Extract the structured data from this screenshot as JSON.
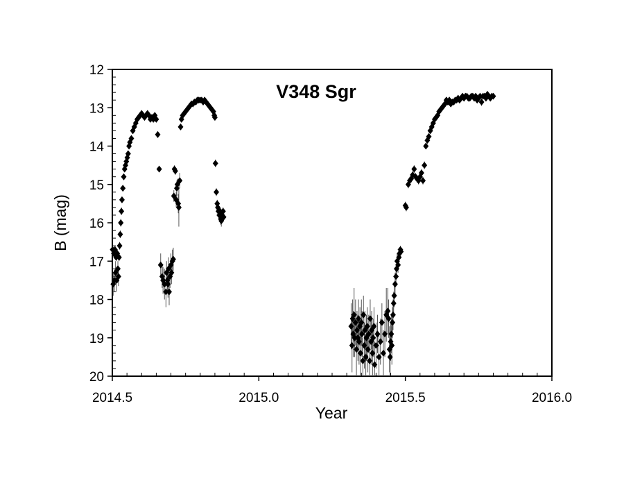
{
  "chart_data": {
    "type": "scatter",
    "title": "V348 Sgr",
    "xlabel": "Year",
    "ylabel": "B (mag)",
    "xlim": [
      2014.5,
      2016.0
    ],
    "ylim": [
      12,
      20
    ],
    "y_inverted": true,
    "x_ticks": [
      "2014.5",
      "2015.0",
      "2015.5",
      "2016.0"
    ],
    "x_tick_values": [
      2014.5,
      2015.0,
      2015.5,
      2016.0
    ],
    "y_ticks": [
      "12",
      "13",
      "14",
      "15",
      "16",
      "17",
      "18",
      "19",
      "20"
    ],
    "y_tick_values": [
      12,
      13,
      14,
      15,
      16,
      17,
      18,
      19,
      20
    ],
    "grid": false,
    "legend": "none",
    "marker": "diamond",
    "marker_color": "#000000",
    "series": [
      {
        "x": [
          2014.501,
          2014.503,
          2014.505,
          2014.507,
          2014.509,
          2014.511,
          2014.513,
          2014.515,
          2014.517,
          2014.519,
          2014.521,
          2014.523,
          2014.525,
          2014.527,
          2014.529,
          2014.531,
          2014.533,
          2014.536,
          2014.539,
          2014.542,
          2014.545,
          2014.548,
          2014.551,
          2014.554,
          2014.557,
          2014.56,
          2014.565,
          2014.57,
          2014.575,
          2014.58,
          2014.585,
          2014.59,
          2014.595,
          2014.6,
          2014.605,
          2014.61,
          2014.615,
          2014.62,
          2014.625,
          2014.63,
          2014.635,
          2014.64,
          2014.645,
          2014.65,
          2014.655,
          2014.66,
          2014.665,
          2014.67,
          2014.673,
          2014.678,
          2014.683,
          2014.685,
          2014.688,
          2014.69,
          2014.692,
          2014.694,
          2014.697,
          2014.7,
          2014.702,
          2014.705,
          2014.708,
          2014.71,
          2014.712,
          2014.715,
          2014.718,
          2014.72,
          2014.722,
          2014.725,
          2014.727,
          2014.73,
          2014.733,
          2014.736,
          2014.74,
          2014.745,
          2014.75,
          2014.755,
          2014.76,
          2014.765,
          2014.77,
          2014.775,
          2014.78,
          2014.785,
          2014.79,
          2014.795,
          2014.8,
          2014.805,
          2014.81,
          2014.815,
          2014.82,
          2014.825,
          2014.83,
          2014.835,
          2014.84,
          2014.845,
          2014.848,
          2014.85,
          2014.852,
          2014.855,
          2014.858,
          2014.86,
          2014.862,
          2014.865,
          2014.868,
          2014.87,
          2014.872,
          2014.875,
          2014.878,
          2014.88
        ],
        "y": [
          16.7,
          17.6,
          16.8,
          17.5,
          16.7,
          17.3,
          16.9,
          17.5,
          16.8,
          17.2,
          17.4,
          16.9,
          16.6,
          16.3,
          16.0,
          15.7,
          15.4,
          15.1,
          14.8,
          14.6,
          14.5,
          14.4,
          14.3,
          14.2,
          14.0,
          13.9,
          13.8,
          13.6,
          13.5,
          13.4,
          13.3,
          13.25,
          13.2,
          13.15,
          13.2,
          13.25,
          13.2,
          13.15,
          13.2,
          13.3,
          13.25,
          13.3,
          13.2,
          13.3,
          13.7,
          14.6,
          17.1,
          17.4,
          17.5,
          17.6,
          17.8,
          17.3,
          17.5,
          17.6,
          17.2,
          17.8,
          17.4,
          17.1,
          17.3,
          17.0,
          16.95,
          15.3,
          14.6,
          14.65,
          15.4,
          15.1,
          15.0,
          15.5,
          15.6,
          14.9,
          13.5,
          13.3,
          13.2,
          13.15,
          13.1,
          13.05,
          13.0,
          12.95,
          12.9,
          12.9,
          12.85,
          12.85,
          12.8,
          12.8,
          12.8,
          12.8,
          12.85,
          12.8,
          12.85,
          12.9,
          12.95,
          13.0,
          13.05,
          13.1,
          13.2,
          13.25,
          14.45,
          15.2,
          15.5,
          15.6,
          15.7,
          15.8,
          15.7,
          15.9,
          15.95,
          15.8,
          15.7,
          15.85
        ],
        "errors": [
          0.1,
          0.3,
          0.1,
          0.3,
          0.1,
          0.3,
          0.1,
          0.3,
          0.1,
          0.2,
          0.25,
          0.1,
          0.1,
          0.1,
          0.1,
          0.1,
          0.05,
          0.05,
          0.05,
          0.05,
          0.05,
          0.05,
          0.05,
          0.05,
          0.05,
          0.05,
          0.05,
          0.05,
          0.05,
          0.05,
          0.05,
          0.05,
          0.05,
          0.05,
          0.05,
          0.05,
          0.05,
          0.05,
          0.05,
          0.05,
          0.05,
          0.05,
          0.05,
          0.05,
          0.05,
          0.05,
          0.3,
          0.3,
          0.35,
          0.4,
          0.4,
          0.3,
          0.3,
          0.35,
          0.3,
          0.35,
          0.3,
          0.3,
          0.3,
          0.3,
          0.3,
          0.15,
          0.1,
          0.1,
          0.2,
          0.2,
          0.15,
          0.25,
          0.5,
          0.2,
          0.05,
          0.05,
          0.05,
          0.05,
          0.05,
          0.05,
          0.05,
          0.05,
          0.05,
          0.05,
          0.05,
          0.05,
          0.05,
          0.05,
          0.05,
          0.05,
          0.05,
          0.05,
          0.05,
          0.05,
          0.05,
          0.05,
          0.05,
          0.05,
          0.05,
          0.05,
          0.1,
          0.1,
          0.1,
          0.1,
          0.1,
          0.15,
          0.1,
          0.15,
          0.15,
          0.1,
          0.1,
          0.1
        ]
      },
      {
        "x": [
          2015.315,
          2015.318,
          2015.32,
          2015.322,
          2015.325,
          2015.327,
          2015.33,
          2015.333,
          2015.335,
          2015.338,
          2015.34,
          2015.342,
          2015.345,
          2015.347,
          2015.35,
          2015.352,
          2015.355,
          2015.357,
          2015.36,
          2015.362,
          2015.365,
          2015.367,
          2015.37,
          2015.372,
          2015.375,
          2015.378,
          2015.38,
          2015.383,
          2015.385,
          2015.388,
          2015.39,
          2015.393,
          2015.395,
          2015.4,
          2015.405,
          2015.41,
          2015.415,
          2015.42,
          2015.425,
          2015.43,
          2015.435,
          2015.44,
          2015.443,
          2015.446,
          2015.448,
          2015.45,
          2015.452,
          2015.454,
          2015.456,
          2015.458,
          2015.46,
          2015.462,
          2015.465,
          2015.468,
          2015.47,
          2015.472,
          2015.475,
          2015.478,
          2015.48,
          2015.483,
          2015.485
        ],
        "y": [
          18.7,
          19.2,
          18.5,
          18.9,
          18.4,
          19.0,
          18.6,
          19.3,
          18.8,
          19.0,
          18.5,
          19.1,
          18.7,
          19.4,
          18.6,
          18.9,
          19.6,
          18.4,
          19.2,
          18.8,
          19.5,
          19.0,
          18.7,
          19.3,
          18.9,
          19.6,
          18.5,
          19.1,
          18.8,
          19.4,
          19.0,
          18.7,
          19.7,
          19.2,
          18.9,
          19.5,
          19.1,
          18.6,
          19.4,
          18.9,
          18.4,
          18.3,
          18.5,
          19.3,
          19.5,
          19.1,
          18.9,
          19.2,
          18.6,
          18.4,
          18.1,
          17.9,
          17.6,
          17.4,
          17.2,
          17.0,
          17.1,
          16.9,
          16.8,
          16.7,
          16.75
        ],
        "errors": [
          0.6,
          0.7,
          0.5,
          0.6,
          0.7,
          0.5,
          0.6,
          0.7,
          0.5,
          0.6,
          0.5,
          0.6,
          0.5,
          0.7,
          0.6,
          0.6,
          0.6,
          0.5,
          0.6,
          0.5,
          0.6,
          0.6,
          0.5,
          0.6,
          0.5,
          0.6,
          0.5,
          0.6,
          0.5,
          0.6,
          0.5,
          0.5,
          0.6,
          0.6,
          0.5,
          0.6,
          0.6,
          0.5,
          0.6,
          0.6,
          0.7,
          0.6,
          0.5,
          0.6,
          0.6,
          0.5,
          0.5,
          0.5,
          0.4,
          0.4,
          0.3,
          0.3,
          0.3,
          0.2,
          0.2,
          0.2,
          0.2,
          0.15,
          0.15,
          0.1,
          0.1
        ]
      },
      {
        "x": [
          2015.5,
          2015.503,
          2015.51,
          2015.515,
          2015.52,
          2015.525,
          2015.53,
          2015.535,
          2015.54,
          2015.545,
          2015.55,
          2015.555,
          2015.56,
          2015.565,
          2015.57,
          2015.575,
          2015.58,
          2015.585,
          2015.59,
          2015.595,
          2015.6,
          2015.605,
          2015.61,
          2015.615,
          2015.62,
          2015.625,
          2015.63,
          2015.635,
          2015.64,
          2015.645,
          2015.65,
          2015.655,
          2015.66,
          2015.665,
          2015.67,
          2015.675,
          2015.68,
          2015.685,
          2015.69,
          2015.695,
          2015.7,
          2015.705,
          2015.71,
          2015.715,
          2015.72,
          2015.725,
          2015.73,
          2015.735,
          2015.74,
          2015.745,
          2015.75,
          2015.755,
          2015.76,
          2015.765,
          2015.77,
          2015.775,
          2015.78,
          2015.785,
          2015.79,
          2015.795,
          2015.8
        ],
        "y": [
          15.55,
          15.6,
          15.0,
          14.9,
          14.85,
          14.75,
          14.6,
          14.8,
          14.85,
          14.9,
          14.8,
          14.7,
          14.9,
          14.5,
          14.0,
          13.85,
          13.75,
          13.6,
          13.5,
          13.4,
          13.3,
          13.25,
          13.2,
          13.1,
          13.05,
          13.0,
          12.95,
          12.9,
          12.8,
          12.85,
          12.8,
          12.9,
          12.85,
          12.85,
          12.8,
          12.8,
          12.75,
          12.8,
          12.75,
          12.7,
          12.75,
          12.7,
          12.7,
          12.75,
          12.75,
          12.7,
          12.7,
          12.75,
          12.7,
          12.8,
          12.75,
          12.7,
          12.85,
          12.7,
          12.7,
          12.75,
          12.65,
          12.7,
          12.75,
          12.7,
          12.7
        ],
        "errors": [
          0.1,
          0.1,
          0.1,
          0.1,
          0.1,
          0.1,
          0.1,
          0.1,
          0.1,
          0.1,
          0.1,
          0.1,
          0.1,
          0.1,
          0.05,
          0.05,
          0.05,
          0.05,
          0.05,
          0.05,
          0.05,
          0.05,
          0.05,
          0.05,
          0.05,
          0.05,
          0.05,
          0.05,
          0.05,
          0.05,
          0.05,
          0.05,
          0.05,
          0.05,
          0.05,
          0.05,
          0.05,
          0.05,
          0.05,
          0.05,
          0.05,
          0.05,
          0.05,
          0.05,
          0.05,
          0.05,
          0.05,
          0.05,
          0.05,
          0.05,
          0.1,
          0.05,
          0.1,
          0.05,
          0.05,
          0.05,
          0.05,
          0.05,
          0.05,
          0.05,
          0.05
        ]
      }
    ]
  }
}
